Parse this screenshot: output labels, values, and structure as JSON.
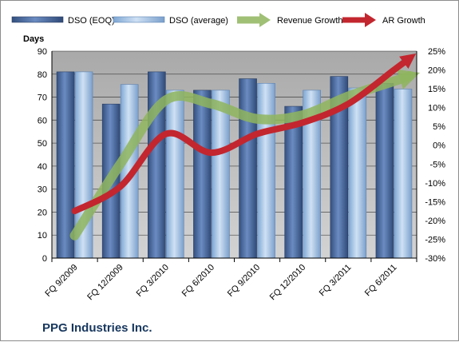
{
  "chart_data": {
    "type": "bar",
    "title": "",
    "company": "PPG Industries Inc.",
    "ylabel": "Days",
    "ylim": [
      0,
      90
    ],
    "y_ticks": [
      "0",
      "10",
      "20",
      "30",
      "40",
      "50",
      "60",
      "70",
      "80",
      "90"
    ],
    "y2lim": [
      -30,
      25
    ],
    "y2_ticks": [
      "-30%",
      "-25%",
      "-20%",
      "-15%",
      "-10%",
      "-5%",
      "0%",
      "5%",
      "10%",
      "15%",
      "20%",
      "25%"
    ],
    "categories": [
      "FQ 9/2009",
      "FQ 12/2009",
      "FQ 3/2010",
      "FQ 6/2010",
      "FQ 9/2010",
      "FQ 12/2010",
      "FQ 3/2011",
      "FQ 6/2011"
    ],
    "series": [
      {
        "name": "DSO (EOQ)",
        "type": "bar",
        "axis": "left",
        "values": [
          81,
          67,
          81,
          73,
          78,
          66,
          79,
          76
        ]
      },
      {
        "name": "DSO (average)",
        "type": "bar",
        "axis": "left",
        "values": [
          81,
          75.5,
          73,
          73,
          76,
          73,
          74,
          73.5
        ]
      },
      {
        "name": "Revenue Growth",
        "type": "line",
        "axis": "right",
        "values": [
          -24,
          -5,
          12,
          11,
          7,
          8,
          13,
          17
        ]
      },
      {
        "name": "AR Growth",
        "type": "line",
        "axis": "right",
        "values": [
          -17.5,
          -11,
          3,
          -2,
          3,
          6,
          11,
          20
        ]
      }
    ],
    "legend_position": "top",
    "grid": true,
    "colors": {
      "bar_eoq": "#4f6fa8",
      "bar_avg": "#a9c6e8",
      "revenue": "#8fb55e",
      "ar": "#c3262e",
      "plot_bg": "#c0c0c0",
      "company_text": "#17375e"
    }
  }
}
